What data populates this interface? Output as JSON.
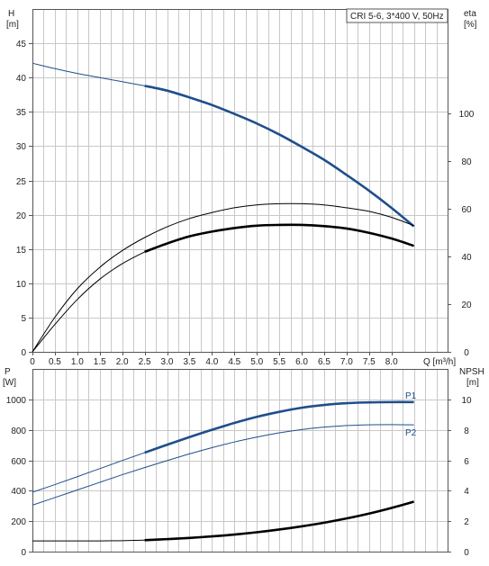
{
  "legend_box": "CRI 5-6, 3*400 V, 50Hz",
  "colors": {
    "blue": "#1f4e8c",
    "black": "#000000",
    "grid": "#c8c8c8",
    "frame": "#555555"
  },
  "chart_data": [
    {
      "type": "line",
      "y_left_label": "H",
      "y_left_unit": "[m]",
      "y_right_label": "eta",
      "y_right_unit": "[%]",
      "x_label": "Q [m³/h]",
      "xlim": [
        0,
        9.25
      ],
      "ylim_left": [
        0,
        50
      ],
      "ylim_right": [
        0,
        144
      ],
      "x_ticks": [
        "0",
        "0.5",
        "1.0",
        "1.5",
        "2.0",
        "2.5",
        "3.0",
        "3.5",
        "4.0",
        "4.5",
        "5.0",
        "5.5",
        "6.0",
        "6.5",
        "7.0",
        "7.5",
        "8.0"
      ],
      "y_left_ticks": [
        "0",
        "5",
        "10",
        "15",
        "20",
        "25",
        "30",
        "35",
        "40",
        "45"
      ],
      "y_right_ticks": [
        "0",
        "20",
        "40",
        "60",
        "80",
        "100"
      ],
      "grid": true,
      "series": [
        {
          "axis": "left",
          "color": "#1f4e8c",
          "x": [
            0,
            0.5,
            1.0,
            1.5,
            2.0,
            2.5,
            3.0,
            3.5,
            4.0,
            4.5,
            5.0,
            5.5,
            6.0,
            6.5,
            7.0,
            7.5,
            8.0,
            8.5
          ],
          "values": [
            42.1,
            41.3,
            40.6,
            40.0,
            39.4,
            38.8,
            38.1,
            37.1,
            36.0,
            34.7,
            33.3,
            31.7,
            29.9,
            28.0,
            25.8,
            23.5,
            21.0,
            18.3
          ],
          "bold_from": 2.5
        },
        {
          "axis": "right",
          "color": "#000000",
          "x": [
            0,
            0.5,
            1.0,
            1.5,
            2.0,
            2.5,
            3.0,
            3.5,
            4.0,
            4.5,
            5.0,
            5.5,
            6.0,
            6.5,
            7.0,
            7.5,
            8.0,
            8.5
          ],
          "values": [
            0,
            14.5,
            26.5,
            35.5,
            42.5,
            48.0,
            52.5,
            56.0,
            58.5,
            60.5,
            61.7,
            62.2,
            62.2,
            61.7,
            60.5,
            59.0,
            56.5,
            53.0
          ]
        },
        {
          "axis": "right",
          "color": "#000000",
          "x": [
            0,
            0.5,
            1.0,
            1.5,
            2.0,
            2.5,
            3.0,
            3.5,
            4.0,
            4.5,
            5.0,
            5.5,
            6.0,
            6.5,
            7.0,
            7.5,
            8.0,
            8.5
          ],
          "values": [
            0,
            11.5,
            22.0,
            30.5,
            37.0,
            42.0,
            45.5,
            48.5,
            50.5,
            52.0,
            53.0,
            53.3,
            53.3,
            52.8,
            51.8,
            50.0,
            47.6,
            44.5
          ],
          "bold_from": 2.5
        }
      ]
    },
    {
      "type": "line",
      "y_left_label": "P",
      "y_left_unit": "[W]",
      "y_right_label": "NPSH",
      "y_right_unit": "[m]",
      "xlim": [
        0,
        9.25
      ],
      "ylim_left": [
        0,
        1200
      ],
      "ylim_right": [
        0,
        12
      ],
      "y_left_ticks": [
        "0",
        "200",
        "400",
        "600",
        "800",
        "1000"
      ],
      "y_right_ticks": [
        "0",
        "2",
        "4",
        "6",
        "8",
        "10"
      ],
      "grid": true,
      "series": [
        {
          "name": "P1",
          "axis": "left",
          "color": "#1f4e8c",
          "x": [
            0,
            0.5,
            1.0,
            1.5,
            2.0,
            2.5,
            3.0,
            3.5,
            4.0,
            4.5,
            5.0,
            5.5,
            6.0,
            6.5,
            7.0,
            7.5,
            8.0,
            8.5
          ],
          "values": [
            390,
            440,
            492,
            545,
            598,
            650,
            702,
            752,
            800,
            845,
            885,
            918,
            945,
            963,
            975,
            980,
            982,
            982
          ],
          "bold_from": 2.5
        },
        {
          "name": "P2",
          "axis": "left",
          "color": "#1f4e8c",
          "x": [
            0,
            0.5,
            1.0,
            1.5,
            2.0,
            2.5,
            3.0,
            3.5,
            4.0,
            4.5,
            5.0,
            5.5,
            6.0,
            6.5,
            7.0,
            7.5,
            8.0,
            8.5
          ],
          "values": [
            305,
            355,
            405,
            455,
            505,
            552,
            598,
            642,
            683,
            720,
            752,
            780,
            802,
            818,
            828,
            833,
            834,
            833
          ]
        },
        {
          "axis": "right",
          "color": "#000000",
          "x": [
            0,
            0.5,
            1.0,
            1.5,
            2.0,
            2.5,
            3.0,
            3.5,
            4.0,
            4.5,
            5.0,
            5.5,
            6.0,
            6.5,
            7.0,
            7.5,
            8.0,
            8.5
          ],
          "values": [
            0.7,
            0.7,
            0.7,
            0.7,
            0.72,
            0.75,
            0.82,
            0.9,
            1.0,
            1.12,
            1.27,
            1.45,
            1.66,
            1.9,
            2.18,
            2.5,
            2.87,
            3.28
          ],
          "bold_from": 2.5
        }
      ]
    }
  ]
}
